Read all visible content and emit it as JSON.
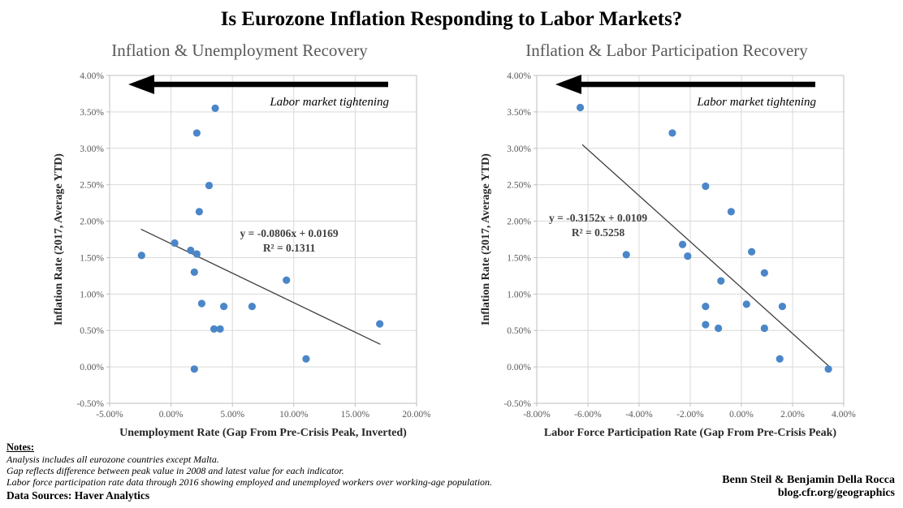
{
  "page_title": "Is Eurozone Inflation Responding to Labor Markets?",
  "colors": {
    "point": "#4a86c8",
    "trendline": "#3f3f3f",
    "grid": "#d9d9d9",
    "axis": "#bfbfbf",
    "arrow": "#000000",
    "title_gray": "#595959"
  },
  "chart_data": [
    {
      "type": "scatter",
      "title": "Inflation & Unemployment Recovery",
      "xlabel": "Unemployment Rate (Gap From Pre-Crisis Peak, Inverted)",
      "ylabel": "Inflation Rate (2017, Average YTD)",
      "xlim": [
        -5,
        20
      ],
      "ylim": [
        -0.5,
        4
      ],
      "grid": true,
      "x_ticks": [
        {
          "v": -5,
          "label": "-5.00%"
        },
        {
          "v": 0,
          "label": "0.00%"
        },
        {
          "v": 5,
          "label": "5.00%"
        },
        {
          "v": 10,
          "label": "10.00%"
        },
        {
          "v": 15,
          "label": "15.00%"
        },
        {
          "v": 20,
          "label": "20.00%"
        }
      ],
      "y_ticks": [
        {
          "v": 4,
          "label": "4.00%"
        },
        {
          "v": 3.5,
          "label": "3.50%"
        },
        {
          "v": 3,
          "label": "3.00%"
        },
        {
          "v": 2.5,
          "label": "2.50%"
        },
        {
          "v": 2,
          "label": "2.00%"
        },
        {
          "v": 1.5,
          "label": "1.50%"
        },
        {
          "v": 1,
          "label": "1.00%"
        },
        {
          "v": 0.5,
          "label": "0.50%"
        },
        {
          "v": 0,
          "label": "0.00%"
        },
        {
          "v": -0.5,
          "label": "-0.50%"
        }
      ],
      "points": [
        [
          3.6,
          3.55
        ],
        [
          2.1,
          3.21
        ],
        [
          3.1,
          2.49
        ],
        [
          2.3,
          2.13
        ],
        [
          0.3,
          1.7
        ],
        [
          1.6,
          1.6
        ],
        [
          2.1,
          1.55
        ],
        [
          -2.4,
          1.53
        ],
        [
          1.9,
          1.3
        ],
        [
          9.4,
          1.19
        ],
        [
          2.5,
          0.87
        ],
        [
          4.3,
          0.83
        ],
        [
          6.6,
          0.83
        ],
        [
          3.5,
          0.52
        ],
        [
          4.0,
          0.52
        ],
        [
          17.0,
          0.59
        ],
        [
          11.0,
          0.11
        ],
        [
          1.9,
          -0.03
        ]
      ],
      "trendline": {
        "x1": -2.45,
        "y1": 1.89,
        "x2": 17.05,
        "y2": 0.31,
        "label_line1": "y = -0.0806x + 0.0169",
        "label_line2": "R² = 0.1311",
        "label_x_frac": 0.585,
        "label_y_frac": 0.492
      },
      "annotation": "Labor market tightening"
    },
    {
      "type": "scatter",
      "title": "Inflation & Labor Participation Recovery",
      "xlabel": "Labor Force Participation Rate (Gap From Pre-Crisis Peak)",
      "ylabel": "Inflation Rate (2017, Average YTD)",
      "xlim": [
        -8,
        4
      ],
      "ylim": [
        -0.5,
        4
      ],
      "grid": true,
      "x_ticks": [
        {
          "v": -8,
          "label": "-8.00%"
        },
        {
          "v": -6,
          "label": "-6.00%"
        },
        {
          "v": -4,
          "label": "-4.00%"
        },
        {
          "v": -2,
          "label": "-2.00%"
        },
        {
          "v": 0,
          "label": "0.00%"
        },
        {
          "v": 2,
          "label": "2.00%"
        },
        {
          "v": 4,
          "label": "4.00%"
        }
      ],
      "y_ticks": [
        {
          "v": 4,
          "label": "4.00%"
        },
        {
          "v": 3.5,
          "label": "3.50%"
        },
        {
          "v": 3,
          "label": "3.00%"
        },
        {
          "v": 2.5,
          "label": "2.50%"
        },
        {
          "v": 2,
          "label": "2.00%"
        },
        {
          "v": 1.5,
          "label": "1.50%"
        },
        {
          "v": 1,
          "label": "1.00%"
        },
        {
          "v": 0.5,
          "label": "0.50%"
        },
        {
          "v": 0,
          "label": "0.00%"
        },
        {
          "v": -0.5,
          "label": "-0.50%"
        }
      ],
      "points": [
        [
          -6.3,
          3.56
        ],
        [
          -2.7,
          3.21
        ],
        [
          -1.4,
          2.48
        ],
        [
          -0.4,
          2.13
        ],
        [
          -2.3,
          1.68
        ],
        [
          -4.5,
          1.54
        ],
        [
          -2.1,
          1.52
        ],
        [
          0.4,
          1.58
        ],
        [
          0.9,
          1.29
        ],
        [
          -0.8,
          1.18
        ],
        [
          -1.4,
          0.83
        ],
        [
          0.2,
          0.86
        ],
        [
          1.6,
          0.83
        ],
        [
          -1.4,
          0.58
        ],
        [
          -0.9,
          0.53
        ],
        [
          0.9,
          0.53
        ],
        [
          1.5,
          0.11
        ],
        [
          3.4,
          -0.03
        ]
      ],
      "trendline": {
        "x1": -6.22,
        "y1": 3.05,
        "x2": 3.45,
        "y2": 0.0,
        "label_line1": "y = -0.3152x + 0.0109",
        "label_line2": "R² = 0.5258",
        "label_x_frac": 0.2,
        "label_y_frac": 0.445
      },
      "annotation": "Labor market tightening"
    }
  ],
  "notes": {
    "heading": "Notes:",
    "lines": [
      "Analysis includes all eurozone countries except Malta.",
      "Gap reflects difference between peak value in 2008 and latest value for each indicator.",
      "Labor force participation rate data through 2016 showing employed and unemployed workers over working-age population."
    ],
    "data_sources": "Data Sources: Haver Analytics"
  },
  "credits": {
    "authors": "Benn Steil & Benjamin Della Rocca",
    "site": "blog.cfr.org/geographics"
  }
}
